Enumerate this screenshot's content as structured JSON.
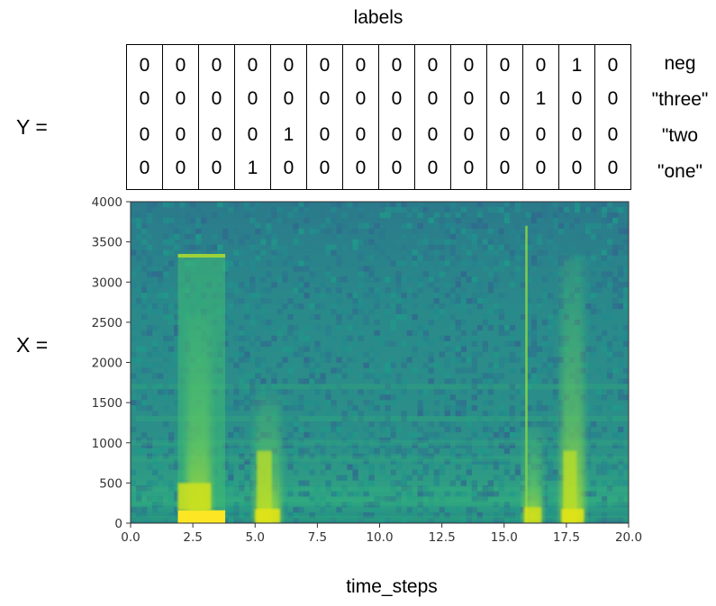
{
  "labels_title": "labels",
  "y_label": "Y =",
  "x_label": "X =",
  "label_matrix": {
    "rows": [
      {
        "name": "neg",
        "values": [
          0,
          0,
          0,
          0,
          0,
          0,
          0,
          0,
          0,
          0,
          0,
          0,
          1,
          0
        ]
      },
      {
        "name": "\"three\"",
        "values": [
          0,
          0,
          0,
          0,
          0,
          0,
          0,
          0,
          0,
          0,
          0,
          1,
          0,
          0
        ]
      },
      {
        "name": "\"two",
        "values": [
          0,
          0,
          0,
          0,
          1,
          0,
          0,
          0,
          0,
          0,
          0,
          0,
          0,
          0
        ]
      },
      {
        "name": "\"one\"",
        "values": [
          0,
          0,
          0,
          1,
          0,
          0,
          0,
          0,
          0,
          0,
          0,
          0,
          0,
          0
        ]
      }
    ]
  },
  "chart_data": {
    "type": "heatmap",
    "xlabel": "time_steps",
    "ylabel": "",
    "xlim": [
      0,
      20
    ],
    "ylim": [
      0,
      4000
    ],
    "x_ticks": [
      "0.0",
      "2.5",
      "5.0",
      "7.5",
      "10.0",
      "12.5",
      "15.0",
      "17.5",
      "20.0"
    ],
    "y_ticks": [
      "0",
      "500",
      "1000",
      "1500",
      "2000",
      "2500",
      "3000",
      "3500",
      "4000"
    ],
    "colormap": "viridis",
    "bright_regions": [
      {
        "t_start": 1.9,
        "t_end": 3.8,
        "f_max": 3350
      },
      {
        "t_start": 5.0,
        "t_end": 6.0,
        "f_max": 1600
      },
      {
        "t_start": 15.8,
        "t_end": 16.5,
        "f_max": 3700
      },
      {
        "t_start": 17.3,
        "t_end": 18.2,
        "f_max": 3300
      }
    ]
  }
}
